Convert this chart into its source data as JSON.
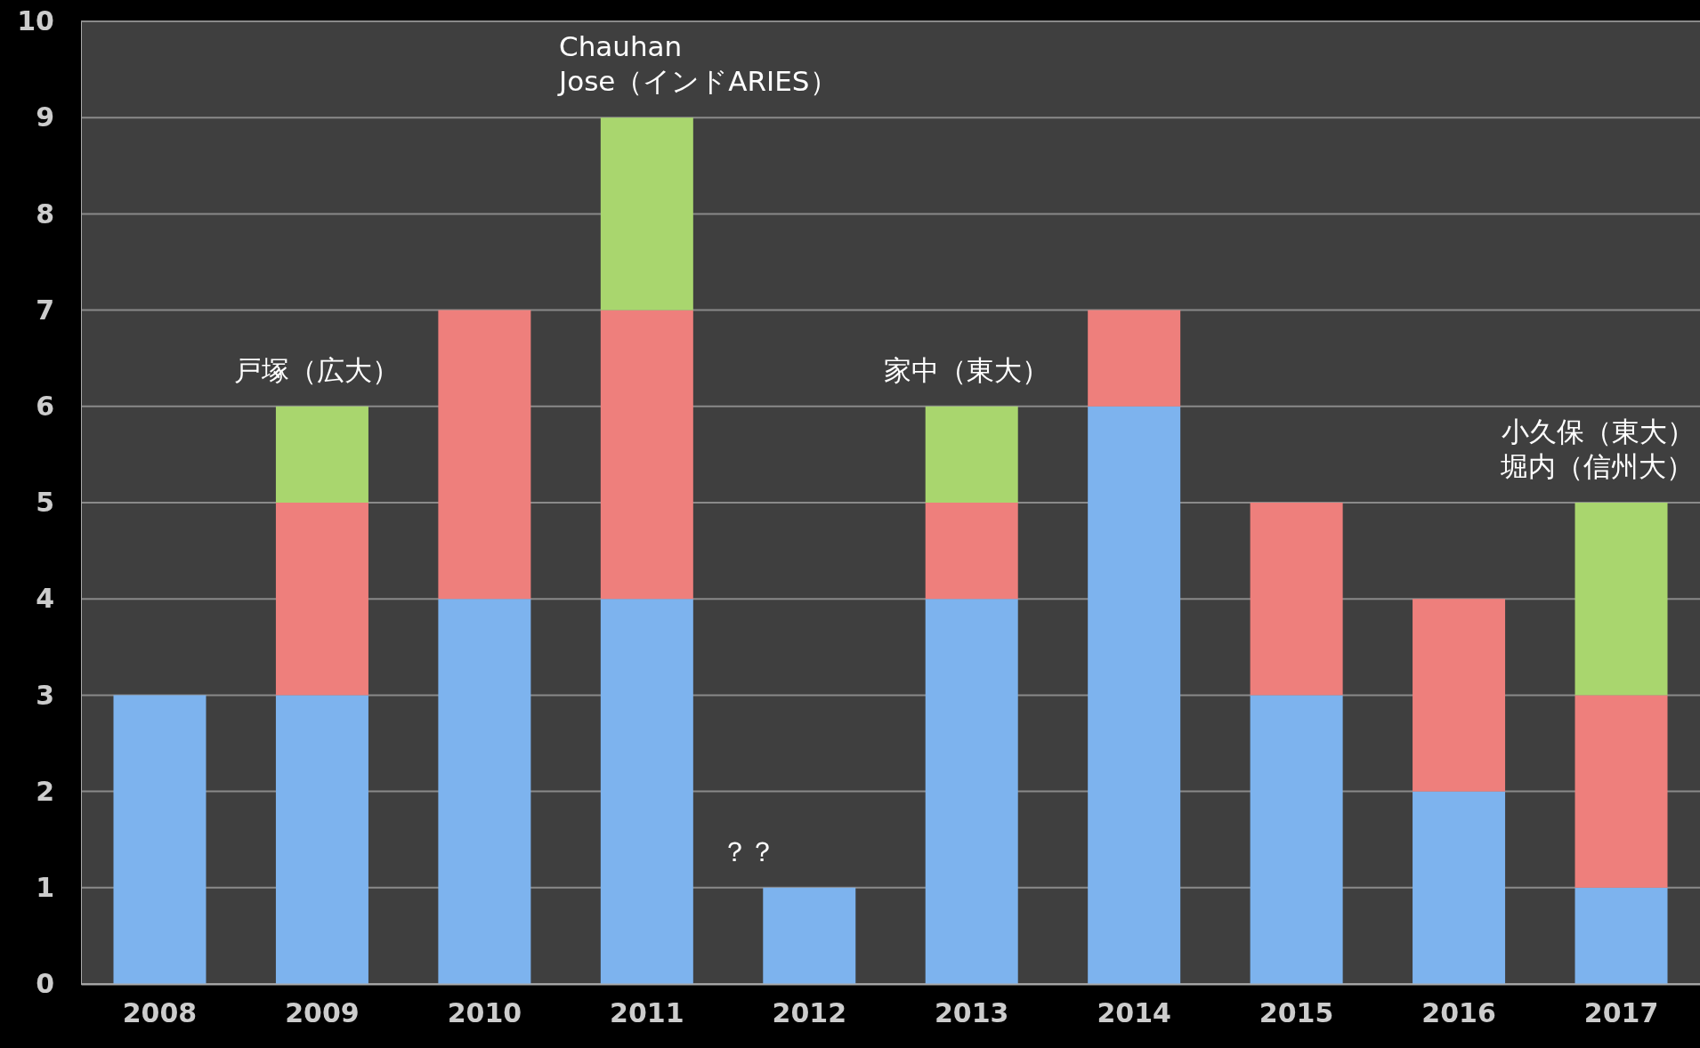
{
  "chart_data": {
    "type": "bar",
    "stacked": true,
    "categories": [
      "2008",
      "2009",
      "2010",
      "2011",
      "2012",
      "2013",
      "2014",
      "2015",
      "2016",
      "2017"
    ],
    "series": [
      {
        "color": "#7db3ee",
        "values": [
          3,
          3,
          4,
          4,
          1,
          4,
          6,
          3,
          2,
          1
        ]
      },
      {
        "color": "#ee7f7c",
        "values": [
          0,
          2,
          3,
          3,
          0,
          1,
          1,
          2,
          2,
          2
        ]
      },
      {
        "color": "#a9d66e",
        "values": [
          0,
          1,
          0,
          2,
          0,
          1,
          0,
          0,
          0,
          2
        ]
      }
    ],
    "ylim": [
      0,
      10
    ],
    "yticks": [
      0,
      1,
      2,
      3,
      4,
      5,
      6,
      7,
      8,
      9,
      10
    ],
    "grid": "y",
    "annotations": [
      {
        "text": "戸塚（広大）",
        "x": "2009",
        "y": 6
      },
      {
        "text": "Chauhan\nJose（インドARIES）",
        "x": "2011",
        "y": 9
      },
      {
        "text": "？？",
        "x": "2012",
        "y": 1
      },
      {
        "text": "家中（東大）",
        "x": "2013",
        "y": 6
      },
      {
        "text": "小久保（東大）",
        "x": "2017",
        "y": 5
      },
      {
        "text": "堀内（信州大）",
        "x": "2017",
        "y": 5
      }
    ]
  }
}
